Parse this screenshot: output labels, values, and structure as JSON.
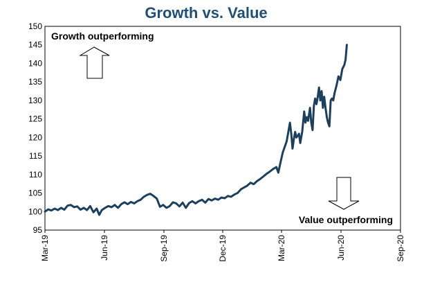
{
  "chart_data": {
    "type": "line",
    "title": "Growth vs. Value",
    "xlabel": "",
    "ylabel": "",
    "ylim": [
      95,
      150
    ],
    "y_ticks": [
      95,
      100,
      105,
      110,
      115,
      120,
      125,
      130,
      135,
      140,
      145,
      150
    ],
    "x_range": [
      "2019-03-01",
      "2020-09-01"
    ],
    "x_ticks": [
      {
        "label": "Mar-19",
        "date": "2019-03-01"
      },
      {
        "label": "Jun-19",
        "date": "2019-06-01"
      },
      {
        "label": "Sep-19",
        "date": "2019-09-01"
      },
      {
        "label": "Dec-19",
        "date": "2019-12-01"
      },
      {
        "label": "Mar-20",
        "date": "2020-03-01"
      },
      {
        "label": "Jun-20",
        "date": "2020-06-01"
      },
      {
        "label": "Sep-20",
        "date": "2020-09-01"
      }
    ],
    "grid": false,
    "legend": "none",
    "annotations": {
      "top": "Growth outperforming",
      "bottom": "Value outperforming"
    },
    "series": [
      {
        "color": "#1b3f5e",
        "points": [
          [
            "2019-03-01",
            100.0
          ],
          [
            "2019-03-06",
            100.6
          ],
          [
            "2019-03-11",
            100.3
          ],
          [
            "2019-03-16",
            100.8
          ],
          [
            "2019-03-21",
            100.4
          ],
          [
            "2019-03-26",
            101.0
          ],
          [
            "2019-03-31",
            100.5
          ],
          [
            "2019-04-05",
            101.6
          ],
          [
            "2019-04-10",
            101.8
          ],
          [
            "2019-04-15",
            101.2
          ],
          [
            "2019-04-20",
            101.4
          ],
          [
            "2019-04-25",
            100.5
          ],
          [
            "2019-04-30",
            101.0
          ],
          [
            "2019-05-05",
            100.4
          ],
          [
            "2019-05-10",
            101.5
          ],
          [
            "2019-05-15",
            99.8
          ],
          [
            "2019-05-20",
            100.8
          ],
          [
            "2019-05-24",
            99.1
          ],
          [
            "2019-05-28",
            100.4
          ],
          [
            "2019-06-02",
            101.0
          ],
          [
            "2019-06-07",
            101.5
          ],
          [
            "2019-06-12",
            101.2
          ],
          [
            "2019-06-17",
            101.8
          ],
          [
            "2019-06-22",
            101.0
          ],
          [
            "2019-06-27",
            102.0
          ],
          [
            "2019-07-02",
            102.5
          ],
          [
            "2019-07-07",
            102.0
          ],
          [
            "2019-07-12",
            102.6
          ],
          [
            "2019-07-17",
            102.2
          ],
          [
            "2019-07-22",
            102.8
          ],
          [
            "2019-07-27",
            103.2
          ],
          [
            "2019-08-01",
            104.0
          ],
          [
            "2019-08-06",
            104.5
          ],
          [
            "2019-08-11",
            104.8
          ],
          [
            "2019-08-16",
            104.2
          ],
          [
            "2019-08-21",
            103.5
          ],
          [
            "2019-08-26",
            101.3
          ],
          [
            "2019-08-31",
            101.8
          ],
          [
            "2019-09-05",
            101.0
          ],
          [
            "2019-09-10",
            101.5
          ],
          [
            "2019-09-15",
            102.5
          ],
          [
            "2019-09-20",
            102.2
          ],
          [
            "2019-09-25",
            101.4
          ],
          [
            "2019-09-30",
            102.4
          ],
          [
            "2019-10-05",
            101.0
          ],
          [
            "2019-10-10",
            102.3
          ],
          [
            "2019-10-15",
            102.8
          ],
          [
            "2019-10-20",
            102.2
          ],
          [
            "2019-10-25",
            102.8
          ],
          [
            "2019-10-30",
            103.2
          ],
          [
            "2019-11-04",
            102.4
          ],
          [
            "2019-11-09",
            103.4
          ],
          [
            "2019-11-14",
            103.0
          ],
          [
            "2019-11-19",
            103.5
          ],
          [
            "2019-11-24",
            103.2
          ],
          [
            "2019-11-29",
            103.8
          ],
          [
            "2019-12-04",
            103.6
          ],
          [
            "2019-12-09",
            104.2
          ],
          [
            "2019-12-14",
            104.0
          ],
          [
            "2019-12-19",
            104.6
          ],
          [
            "2019-12-24",
            105.0
          ],
          [
            "2019-12-29",
            106.0
          ],
          [
            "2020-01-03",
            106.5
          ],
          [
            "2020-01-08",
            107.0
          ],
          [
            "2020-01-13",
            107.8
          ],
          [
            "2020-01-18",
            107.4
          ],
          [
            "2020-01-23",
            108.2
          ],
          [
            "2020-01-28",
            108.8
          ],
          [
            "2020-02-02",
            109.5
          ],
          [
            "2020-02-07",
            110.2
          ],
          [
            "2020-02-12",
            110.8
          ],
          [
            "2020-02-17",
            111.5
          ],
          [
            "2020-02-22",
            112.0
          ],
          [
            "2020-02-25",
            110.5
          ],
          [
            "2020-02-28",
            113.0
          ],
          [
            "2020-03-03",
            116.0
          ],
          [
            "2020-03-06",
            117.5
          ],
          [
            "2020-03-09",
            119.0
          ],
          [
            "2020-03-12",
            122.0
          ],
          [
            "2020-03-14",
            124.0
          ],
          [
            "2020-03-16",
            121.0
          ],
          [
            "2020-03-18",
            117.0
          ],
          [
            "2020-03-20",
            119.5
          ],
          [
            "2020-03-22",
            121.5
          ],
          [
            "2020-03-24",
            120.0
          ],
          [
            "2020-03-26",
            120.5
          ],
          [
            "2020-03-28",
            121.0
          ],
          [
            "2020-03-30",
            118.5
          ],
          [
            "2020-04-02",
            121.5
          ],
          [
            "2020-04-05",
            127.0
          ],
          [
            "2020-04-07",
            124.0
          ],
          [
            "2020-04-09",
            125.5
          ],
          [
            "2020-04-11",
            124.5
          ],
          [
            "2020-04-14",
            128.0
          ],
          [
            "2020-04-16",
            124.0
          ],
          [
            "2020-04-18",
            122.0
          ],
          [
            "2020-04-20",
            128.5
          ],
          [
            "2020-04-22",
            130.5
          ],
          [
            "2020-04-24",
            129.0
          ],
          [
            "2020-04-26",
            131.0
          ],
          [
            "2020-04-28",
            133.5
          ],
          [
            "2020-04-30",
            130.0
          ],
          [
            "2020-05-02",
            132.5
          ],
          [
            "2020-05-04",
            128.0
          ],
          [
            "2020-05-06",
            131.0
          ],
          [
            "2020-05-08",
            128.0
          ],
          [
            "2020-05-10",
            125.5
          ],
          [
            "2020-05-12",
            124.0
          ],
          [
            "2020-05-14",
            123.0
          ],
          [
            "2020-05-16",
            130.0
          ],
          [
            "2020-05-18",
            130.5
          ],
          [
            "2020-05-20",
            130.0
          ],
          [
            "2020-05-22",
            132.0
          ],
          [
            "2020-05-25",
            134.0
          ],
          [
            "2020-05-28",
            136.5
          ],
          [
            "2020-05-31",
            135.5
          ],
          [
            "2020-06-03",
            138.5
          ],
          [
            "2020-06-06",
            139.5
          ],
          [
            "2020-06-08",
            141.0
          ],
          [
            "2020-06-10",
            145.0
          ]
        ]
      }
    ]
  }
}
